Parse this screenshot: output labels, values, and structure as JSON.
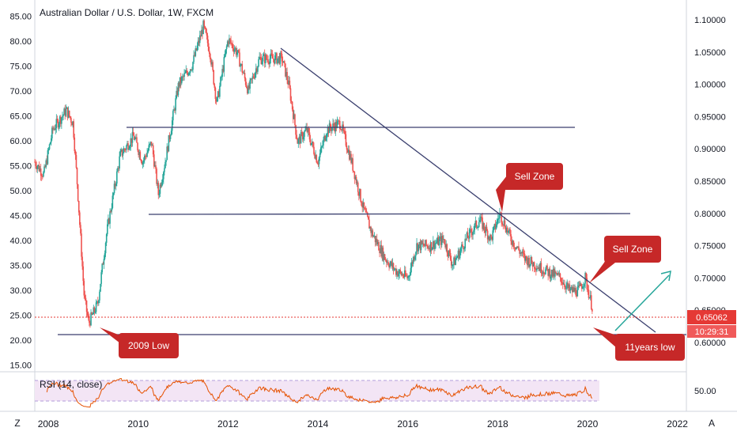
{
  "symbol_title": "Australian Dollar / U.S. Dollar, 1W, FXCM",
  "price_label": "0.65062",
  "countdown_label": "10:29:31",
  "rsi_label": "RSI (14, close)",
  "rsi_level_label": "50.00",
  "corner_left": "Z",
  "corner_right": "A",
  "annotations": {
    "sell_zone_1": "Sell Zone",
    "sell_zone_2": "Sell Zone",
    "low_2009": "2009 Low",
    "low_11y": "11years low"
  },
  "colors": {
    "up": "#26a69a",
    "down": "#ef5350",
    "callout": "#c62828",
    "trendline": "#3a3f6e",
    "price_line": "#e53935",
    "arrow": "#26a69a",
    "rsi_line": "#e65100",
    "rsi_band": "#f3e5f5"
  },
  "chart_data": [
    {
      "type": "candlestick",
      "title": "Australian Dollar / U.S. Dollar, 1W, FXCM",
      "left_axis_ticks": [
        "85.00",
        "80.00",
        "75.00",
        "70.00",
        "65.00",
        "60.00",
        "55.00",
        "50.00",
        "45.00",
        "40.00",
        "35.00",
        "30.00",
        "25.00",
        "20.00",
        "15.00"
      ],
      "right_axis_ticks": [
        "1.10000",
        "1.05000",
        "1.00000",
        "0.95000",
        "0.90000",
        "0.85000",
        "0.80000",
        "0.75000",
        "0.70000",
        "0.65000",
        "0.60000"
      ],
      "x_ticks": [
        "2008",
        "2010",
        "2012",
        "2014",
        "2016",
        "2018",
        "2020",
        "2022"
      ],
      "x_range": [
        2007.7,
        2022.2
      ],
      "y_left_range": [
        14,
        87
      ],
      "y_right_range": [
        0.557,
        1.121
      ],
      "last_price": 0.65062,
      "path_points": [
        [
          2007.7,
          0.88
        ],
        [
          2007.9,
          0.86
        ],
        [
          2008.1,
          0.93
        ],
        [
          2008.4,
          0.96
        ],
        [
          2008.55,
          0.94
        ],
        [
          2008.65,
          0.84
        ],
        [
          2008.8,
          0.67
        ],
        [
          2008.9,
          0.63
        ],
        [
          2009.1,
          0.66
        ],
        [
          2009.3,
          0.77
        ],
        [
          2009.6,
          0.89
        ],
        [
          2009.9,
          0.92
        ],
        [
          2010.1,
          0.88
        ],
        [
          2010.3,
          0.91
        ],
        [
          2010.45,
          0.83
        ],
        [
          2010.6,
          0.88
        ],
        [
          2010.9,
          1.0
        ],
        [
          2011.2,
          1.03
        ],
        [
          2011.45,
          1.09
        ],
        [
          2011.6,
          1.05
        ],
        [
          2011.75,
          0.97
        ],
        [
          2012.0,
          1.07
        ],
        [
          2012.2,
          1.05
        ],
        [
          2012.45,
          0.99
        ],
        [
          2012.7,
          1.04
        ],
        [
          2013.0,
          1.04
        ],
        [
          2013.2,
          1.04
        ],
        [
          2013.35,
          1.0
        ],
        [
          2013.55,
          0.91
        ],
        [
          2013.75,
          0.93
        ],
        [
          2014.0,
          0.88
        ],
        [
          2014.2,
          0.93
        ],
        [
          2014.5,
          0.94
        ],
        [
          2014.75,
          0.88
        ],
        [
          2015.0,
          0.81
        ],
        [
          2015.2,
          0.77
        ],
        [
          2015.5,
          0.73
        ],
        [
          2015.75,
          0.71
        ],
        [
          2016.0,
          0.7
        ],
        [
          2016.2,
          0.75
        ],
        [
          2016.5,
          0.75
        ],
        [
          2016.8,
          0.76
        ],
        [
          2017.0,
          0.72
        ],
        [
          2017.3,
          0.76
        ],
        [
          2017.6,
          0.79
        ],
        [
          2017.85,
          0.76
        ],
        [
          2018.05,
          0.8
        ],
        [
          2018.3,
          0.76
        ],
        [
          2018.6,
          0.73
        ],
        [
          2018.85,
          0.72
        ],
        [
          2019.1,
          0.71
        ],
        [
          2019.4,
          0.7
        ],
        [
          2019.6,
          0.68
        ],
        [
          2019.8,
          0.68
        ],
        [
          2019.95,
          0.7
        ],
        [
          2020.05,
          0.67
        ],
        [
          2020.12,
          0.65062
        ]
      ]
    },
    {
      "type": "line",
      "title": "RSI (14, close)",
      "y_range": [
        0,
        100
      ],
      "band": [
        30,
        70
      ],
      "ticks": [
        "50.00"
      ]
    }
  ]
}
